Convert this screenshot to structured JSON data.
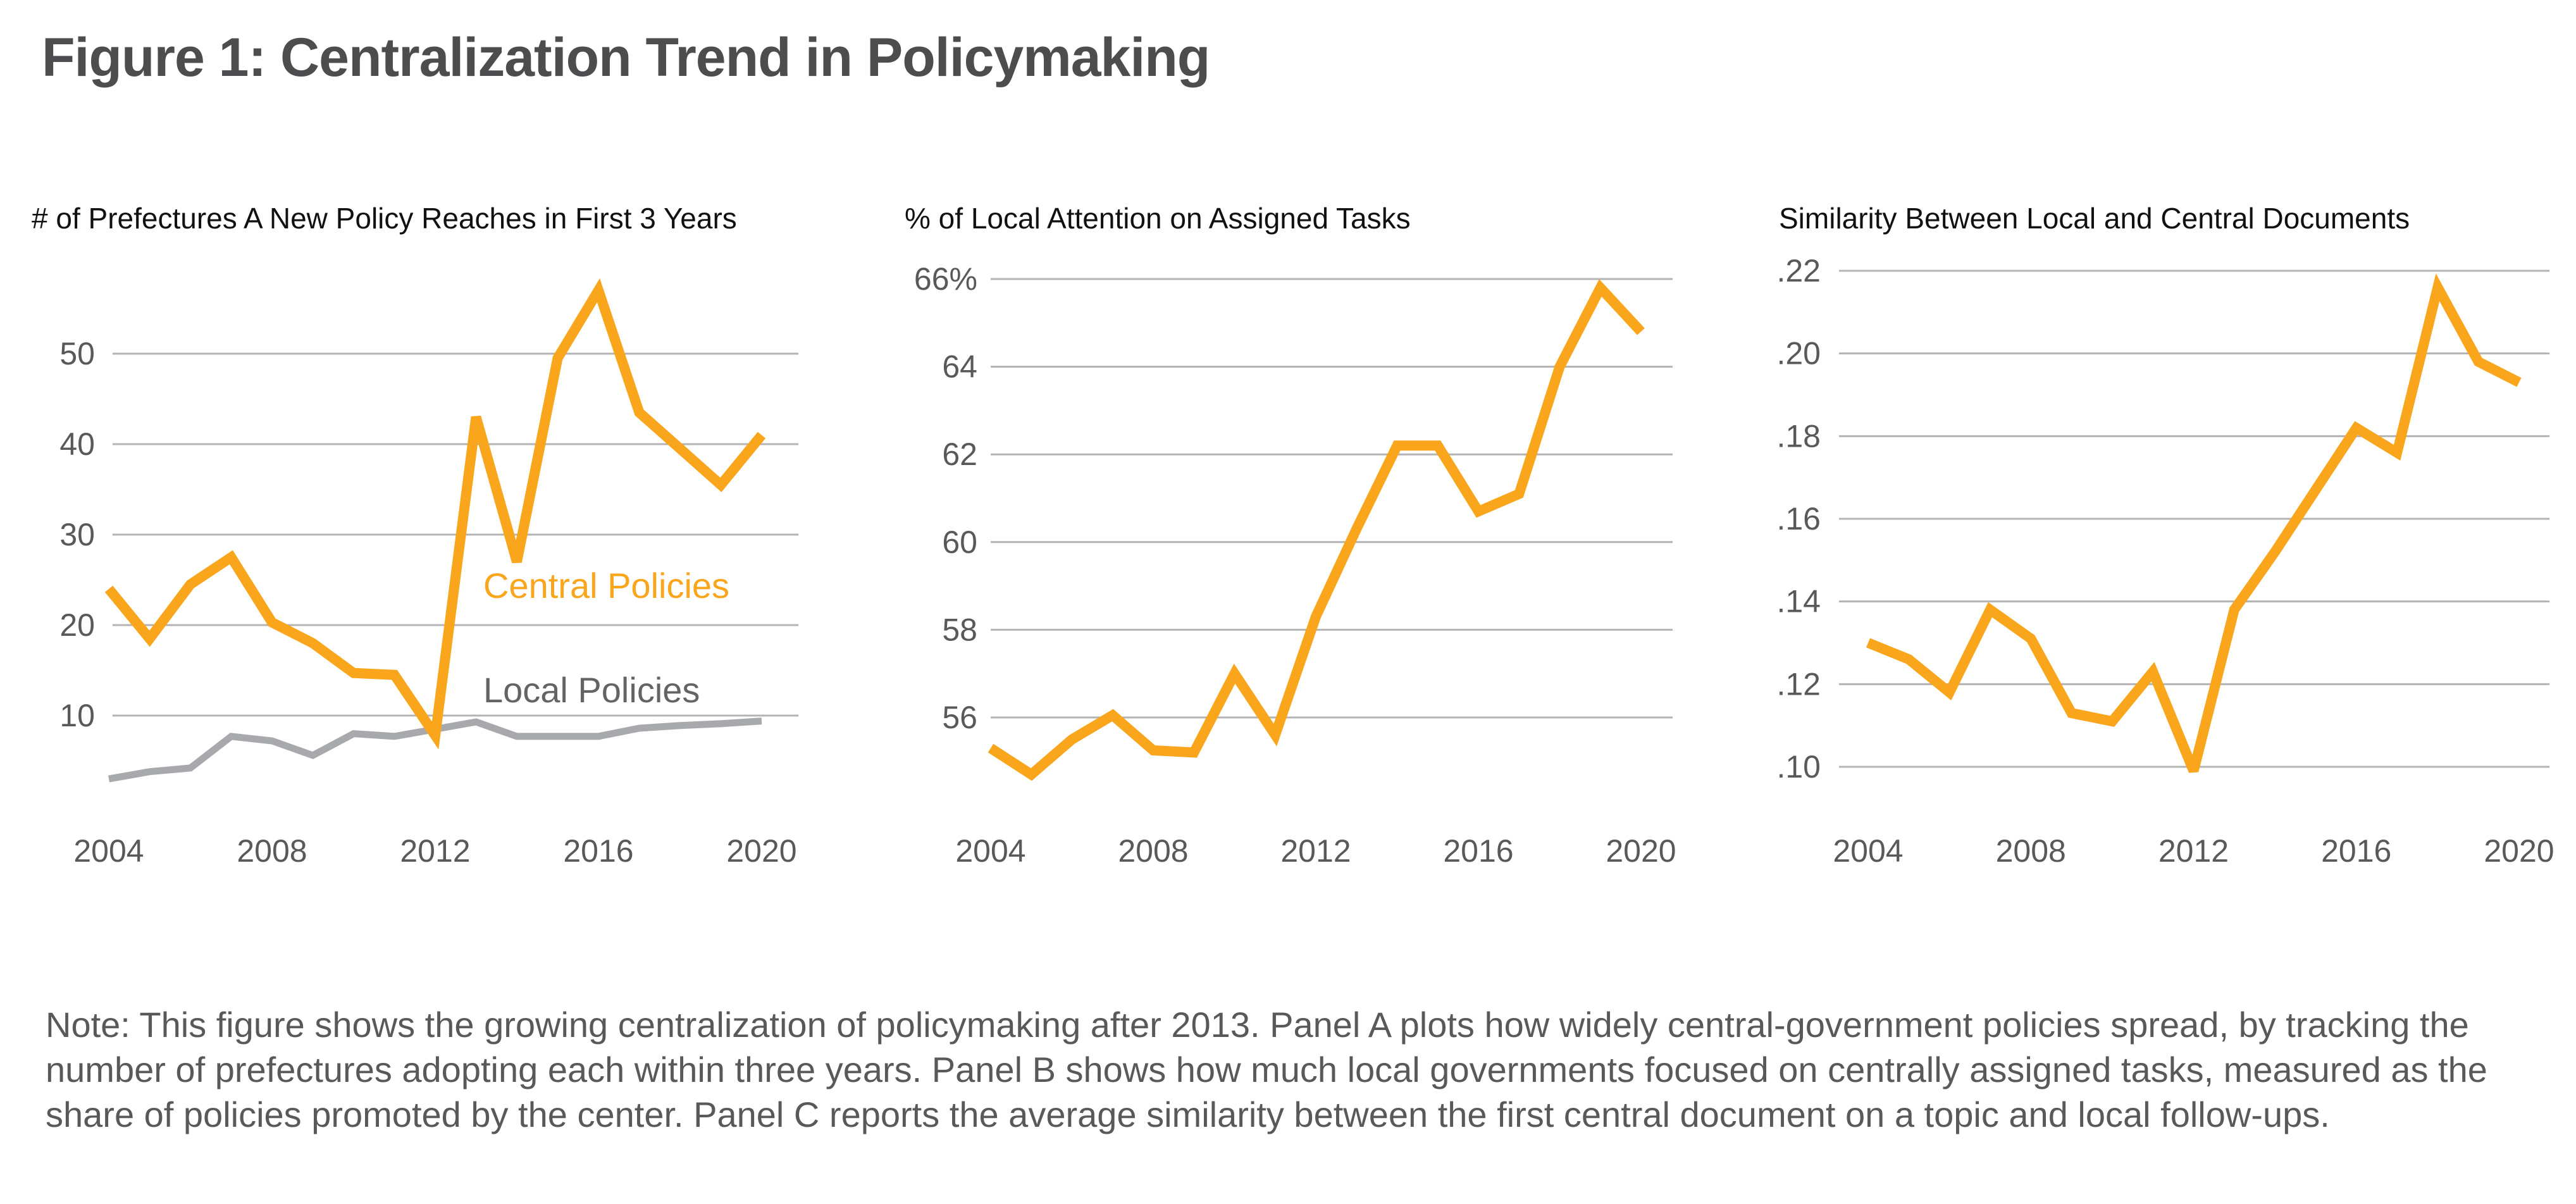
{
  "figure": {
    "title": "Figure 1: Centralization Trend in Policymaking",
    "note": "Note: This figure shows the growing centralization of policymaking after 2013. Panel A plots how widely central-government policies spread, by tracking the number of prefectures adopting each within three years. Panel B shows how much local governments focused on centrally assigned tasks, measured as the share of policies promoted by the center. Panel C reports the average similarity between the first central document on a topic and local follow-ups."
  },
  "colors": {
    "central": "#F9A61C",
    "local_line": "#A7A9AC",
    "local_label": "#636466",
    "grid": "#B3B3B3",
    "tick_text": "#58595b"
  },
  "chart_data": [
    {
      "type": "line",
      "title": "# of Prefectures A New Policy Reaches in First 3 Years",
      "xlabel": "",
      "ylabel": "",
      "x": [
        2004,
        2005,
        2006,
        2007,
        2008,
        2009,
        2010,
        2011,
        2012,
        2013,
        2014,
        2015,
        2016,
        2017,
        2018,
        2019,
        2020
      ],
      "xticks": [
        "2004",
        "2008",
        "2012",
        "2016",
        "2020"
      ],
      "xtick_values": [
        2004,
        2008,
        2012,
        2016,
        2020
      ],
      "yticks": [
        "10",
        "20",
        "30",
        "40",
        "50"
      ],
      "ytick_values": [
        10,
        20,
        30,
        40,
        50
      ],
      "ylim": [
        0,
        60
      ],
      "grid": true,
      "series": [
        {
          "name": "Central Policies",
          "color_key": "central",
          "values": [
            24,
            18.5,
            24.5,
            27.5,
            20.3,
            18,
            14.7,
            14.5,
            7.8,
            43,
            27,
            49.5,
            57,
            43.5,
            39.5,
            35.5,
            41
          ]
        },
        {
          "name": "Local Policies",
          "color_key": "local_line",
          "values": [
            3,
            3.8,
            4.2,
            7.7,
            7.2,
            5.6,
            8,
            7.7,
            8.5,
            9.3,
            7.7,
            7.7,
            7.7,
            8.6,
            8.9,
            9.1,
            9.4
          ]
        }
      ],
      "annotations": [
        {
          "text": "Central Policies",
          "series": "Central Policies"
        },
        {
          "text": "Local Policies",
          "series": "Local Policies"
        }
      ]
    },
    {
      "type": "line",
      "title": "% of Local Attention on Assigned Tasks",
      "xlabel": "",
      "ylabel": "",
      "x": [
        2004,
        2005,
        2006,
        2007,
        2008,
        2009,
        2010,
        2011,
        2012,
        2013,
        2014,
        2015,
        2016,
        2017,
        2018,
        2019,
        2020
      ],
      "xticks": [
        "2004",
        "2008",
        "2012",
        "2016",
        "2020"
      ],
      "xtick_values": [
        2004,
        2008,
        2012,
        2016,
        2020
      ],
      "yticks": [
        "56",
        "58",
        "60",
        "62",
        "64",
        "66%"
      ],
      "ytick_values": [
        56,
        58,
        60,
        62,
        64,
        66
      ],
      "ylim": [
        54,
        66
      ],
      "grid": true,
      "series": [
        {
          "name": "Local attention on assigned tasks",
          "color_key": "central",
          "values": [
            55.3,
            54.7,
            55.5,
            56.05,
            55.25,
            55.2,
            57.0,
            55.6,
            58.3,
            60.3,
            62.2,
            62.2,
            60.7,
            61.1,
            64.0,
            65.8,
            64.8
          ]
        }
      ]
    },
    {
      "type": "line",
      "title": "Similarity Between Local and Central Documents",
      "xlabel": "",
      "ylabel": "",
      "x": [
        2004,
        2005,
        2006,
        2007,
        2008,
        2009,
        2010,
        2011,
        2012,
        2013,
        2014,
        2015,
        2016,
        2017,
        2018,
        2019,
        2020
      ],
      "xticks": [
        "2004",
        "2008",
        "2012",
        "2016",
        "2020"
      ],
      "xtick_values": [
        2004,
        2008,
        2012,
        2016,
        2020
      ],
      "yticks": [
        ".10",
        ".12",
        ".14",
        ".16",
        ".18",
        ".20",
        ".22"
      ],
      "ytick_values": [
        0.1,
        0.12,
        0.14,
        0.16,
        0.18,
        0.2,
        0.22
      ],
      "ylim": [
        0.09,
        0.22
      ],
      "grid": true,
      "series": [
        {
          "name": "Similarity",
          "color_key": "central",
          "values": [
            0.13,
            0.126,
            0.118,
            0.138,
            0.131,
            0.113,
            0.111,
            0.123,
            0.099,
            0.138,
            0.152,
            0.167,
            0.182,
            0.176,
            0.216,
            0.198,
            0.193
          ]
        }
      ]
    }
  ]
}
